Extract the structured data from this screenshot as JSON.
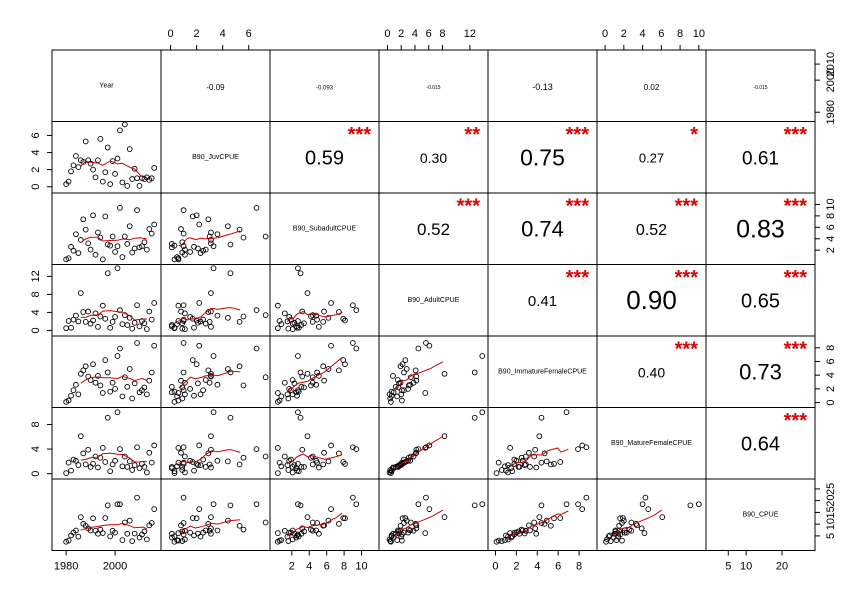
{
  "chart_data": {
    "type": "scatter",
    "subtype": "correlation-matrix",
    "variables": [
      "Year",
      "B90_JuvCPUE",
      "B90_SubadultCPUE",
      "B90_AdultCPUE",
      "B90_ImmatureFemaleCPUE",
      "B90_MatureFemaleCPUE",
      "B90_CPUE"
    ],
    "ranges": [
      [
        1976,
        2017
      ],
      [
        -0.4,
        7.3
      ],
      [
        0,
        11.5
      ],
      [
        -0.6,
        14
      ],
      [
        -0.3,
        9.3
      ],
      [
        -0.4,
        10.3
      ],
      [
        0,
        28
      ]
    ],
    "axis_ticks": {
      "top": [
        {
          "var": 1,
          "ticks": [
            "0",
            "2",
            "4",
            "6"
          ]
        },
        {
          "var": 3,
          "ticks": [
            "0",
            "2",
            "4",
            "6",
            "8",
            "12"
          ]
        },
        {
          "var": 5,
          "ticks": [
            "0",
            "2",
            "4",
            "6",
            "8",
            "10"
          ]
        }
      ],
      "bottom": [
        {
          "var": 0,
          "ticks": [
            "1980",
            "2000"
          ]
        },
        {
          "var": 2,
          "ticks": [
            "2",
            "4",
            "6",
            "8",
            "10"
          ]
        },
        {
          "var": 4,
          "ticks": [
            "0",
            "2",
            "4",
            "6",
            "8"
          ]
        },
        {
          "var": 6,
          "ticks": [
            "5",
            "10",
            "20"
          ]
        }
      ],
      "left": [
        {
          "var": 1,
          "ticks": [
            "0",
            "2",
            "4",
            "6"
          ]
        },
        {
          "var": 3,
          "ticks": [
            "0",
            "4",
            "8",
            "12"
          ]
        },
        {
          "var": 5,
          "ticks": [
            "0",
            "4",
            "8"
          ]
        }
      ],
      "right": [
        {
          "var": 0,
          "ticks": [
            "1980",
            "2000",
            "2010"
          ]
        },
        {
          "var": 2,
          "ticks": [
            "2",
            "4",
            "6",
            "8",
            "10"
          ]
        },
        {
          "var": 4,
          "ticks": [
            "0",
            "2",
            "4",
            "6",
            "8"
          ]
        },
        {
          "var": 6,
          "ticks": [
            "5",
            "10",
            "15",
            "20",
            "25"
          ]
        }
      ]
    },
    "correlations": [
      {
        "row": 0,
        "col": 1,
        "value": "-0.09",
        "stars": "",
        "size": 8
      },
      {
        "row": 0,
        "col": 2,
        "value": "-0.093",
        "stars": "",
        "size": 6
      },
      {
        "row": 0,
        "col": 3,
        "value": "-0.015",
        "stars": "",
        "size": 5
      },
      {
        "row": 0,
        "col": 4,
        "value": "-0.13",
        "stars": "",
        "size": 9
      },
      {
        "row": 0,
        "col": 5,
        "value": "0.02",
        "stars": "",
        "size": 8
      },
      {
        "row": 0,
        "col": 6,
        "value": "-0.015",
        "stars": "",
        "size": 5
      },
      {
        "row": 1,
        "col": 2,
        "value": "0.59",
        "stars": "***",
        "size": 20
      },
      {
        "row": 1,
        "col": 3,
        "value": "0.30",
        "stars": "**",
        "size": 14
      },
      {
        "row": 1,
        "col": 4,
        "value": "0.75",
        "stars": "***",
        "size": 23
      },
      {
        "row": 1,
        "col": 5,
        "value": "0.27",
        "stars": "*",
        "size": 13
      },
      {
        "row": 1,
        "col": 6,
        "value": "0.61",
        "stars": "***",
        "size": 19
      },
      {
        "row": 2,
        "col": 3,
        "value": "0.52",
        "stars": "***",
        "size": 17
      },
      {
        "row": 2,
        "col": 4,
        "value": "0.74",
        "stars": "***",
        "size": 22
      },
      {
        "row": 2,
        "col": 5,
        "value": "0.52",
        "stars": "***",
        "size": 16
      },
      {
        "row": 2,
        "col": 6,
        "value": "0.83",
        "stars": "***",
        "size": 25
      },
      {
        "row": 3,
        "col": 4,
        "value": "0.41",
        "stars": "***",
        "size": 15
      },
      {
        "row": 3,
        "col": 5,
        "value": "0.90",
        "stars": "***",
        "size": 26
      },
      {
        "row": 3,
        "col": 6,
        "value": "0.65",
        "stars": "***",
        "size": 20
      },
      {
        "row": 4,
        "col": 5,
        "value": "0.40",
        "stars": "***",
        "size": 14
      },
      {
        "row": 4,
        "col": 6,
        "value": "0.73",
        "stars": "***",
        "size": 22
      },
      {
        "row": 5,
        "col": 6,
        "value": "0.64",
        "stars": "***",
        "size": 20
      }
    ],
    "observations": [
      [
        1980,
        0.3,
        0.4,
        0.5,
        0.1,
        0.1,
        2.5
      ],
      [
        1981,
        0.6,
        0.6,
        2.1,
        0.3,
        1.8,
        3.0
      ],
      [
        1982,
        1.8,
        2.6,
        0.6,
        1.0,
        0.5,
        5.2
      ],
      [
        1983,
        2.5,
        1.9,
        2.4,
        1.8,
        2.3,
        6.4
      ],
      [
        1984,
        3.6,
        4.8,
        3.3,
        2.6,
        2.1,
        7.3
      ],
      [
        1985,
        2.3,
        1.5,
        2.0,
        1.2,
        1.4,
        4.7
      ],
      [
        1986,
        3.1,
        3.8,
        8.3,
        4.2,
        6.1,
        13.0
      ],
      [
        1987,
        2.9,
        7.4,
        4.1,
        4.7,
        3.3,
        10.1
      ],
      [
        1988,
        5.3,
        5.6,
        1.9,
        5.3,
        1.5,
        9.3
      ],
      [
        1989,
        3.1,
        3.2,
        4.2,
        3.8,
        3.9,
        8.2
      ],
      [
        1990,
        2.7,
        2.1,
        1.5,
        3.3,
        1.1,
        7.3
      ],
      [
        1991,
        2.0,
        8.1,
        2.2,
        5.6,
        1.6,
        12.5
      ],
      [
        1992,
        1.1,
        1.2,
        3.8,
        2.9,
        2.8,
        7.2
      ],
      [
        1993,
        3.1,
        5.1,
        0.8,
        3.9,
        1.0,
        5.9
      ],
      [
        1994,
        5.6,
        4.2,
        3.1,
        2.5,
        2.6,
        7.7
      ],
      [
        1995,
        0.6,
        0.4,
        5.5,
        1.4,
        4.2,
        6.2
      ],
      [
        1996,
        1.7,
        7.9,
        2.6,
        6.2,
        1.9,
        12.6
      ],
      [
        1997,
        4.6,
        3.0,
        12.7,
        4.4,
        9.1,
        18.0
      ],
      [
        1998,
        0.3,
        2.8,
        0.6,
        1.6,
        0.4,
        4.8
      ],
      [
        1999,
        3.0,
        4.4,
        1.9,
        2.9,
        1.5,
        7.2
      ],
      [
        2000,
        1.5,
        1.7,
        3.0,
        2.0,
        2.1,
        6.4
      ],
      [
        2001,
        3.3,
        2.7,
        13.8,
        6.8,
        10.0,
        18.5
      ],
      [
        2002,
        6.6,
        9.4,
        4.5,
        7.9,
        4.0,
        18.5
      ],
      [
        2003,
        0.5,
        0.8,
        1.4,
        0.9,
        1.2,
        3.2
      ],
      [
        2004,
        7.3,
        4.4,
        3.4,
        3.7,
        2.8,
        10.7
      ],
      [
        2005,
        0.1,
        3.1,
        1.2,
        2.3,
        1.1,
        5.9
      ],
      [
        2006,
        4.4,
        6.2,
        2.8,
        4.9,
        2.0,
        11.5
      ],
      [
        2007,
        0.9,
        1.6,
        0.4,
        0.6,
        0.6,
        2.8
      ],
      [
        2008,
        2.1,
        2.3,
        1.7,
        2.8,
        1.4,
        6.0
      ],
      [
        2009,
        1.0,
        9.0,
        5.6,
        8.7,
        4.3,
        21.3
      ],
      [
        2010,
        0.1,
        2.5,
        0.9,
        1.5,
        0.9,
        4.3
      ],
      [
        2011,
        1.0,
        2.7,
        2.1,
        1.8,
        1.6,
        5.6
      ],
      [
        2012,
        0.9,
        3.4,
        1.6,
        2.2,
        1.1,
        6.9
      ],
      [
        2013,
        1.1,
        2.1,
        0.3,
        1.2,
        0.2,
        3.5
      ],
      [
        2014,
        0.8,
        5.7,
        4.2,
        3.2,
        3.4,
        9.5
      ],
      [
        2015,
        1.0,
        4.9,
        2.4,
        4.4,
        1.8,
        10.5
      ],
      [
        2016,
        2.2,
        6.5,
        6.1,
        8.3,
        4.6,
        16.4
      ]
    ]
  }
}
